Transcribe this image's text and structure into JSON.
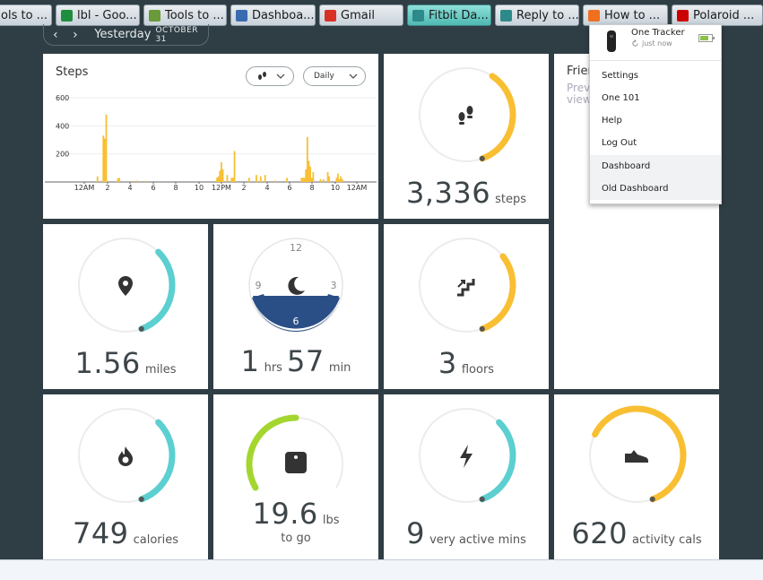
{
  "tabs": [
    {
      "label": "ols to ...",
      "icon": "tools-icon",
      "color": "#6a9a3a"
    },
    {
      "label": "lbl - Goo...",
      "icon": "sheets-icon",
      "color": "#1e8e3e"
    },
    {
      "label": "Tools to ...",
      "icon": "tools-icon",
      "color": "#6a9a3a"
    },
    {
      "label": "Dashboa...",
      "icon": "tw-icon",
      "color": "#3a6ab0"
    },
    {
      "label": "Gmail",
      "icon": "gmail-icon",
      "color": "#d93025"
    },
    {
      "label": "Fitbit Da...",
      "icon": "fitbit-icon",
      "color": "#2d8a8a"
    },
    {
      "label": "Reply to ...",
      "icon": "fitbit-icon",
      "color": "#2d8a8a"
    },
    {
      "label": "How to ...",
      "icon": "ring-icon",
      "color": "#f07020"
    },
    {
      "label": "Polaroid ...",
      "icon": "youtube-icon",
      "color": "#cc0000"
    }
  ],
  "date_nav": {
    "prev": "‹",
    "next": "›",
    "day": "Yesterday",
    "date": "OCTOBER 31"
  },
  "steps_chart": {
    "title": "Steps",
    "filter_label": "Daily",
    "chart_data": {
      "type": "bar",
      "title": "Steps",
      "ylim": [
        0,
        600
      ],
      "yticks": [
        200,
        400,
        600
      ],
      "xtick_labels": [
        "12AM",
        "2",
        "4",
        "6",
        "8",
        "10",
        "12PM",
        "2",
        "4",
        "6",
        "8",
        "10",
        "12AM"
      ],
      "values": [
        0,
        0,
        0,
        0,
        0,
        0,
        0,
        0,
        0,
        40,
        0,
        0,
        0,
        330,
        310,
        480,
        0,
        0,
        0,
        0,
        0,
        0,
        0,
        25,
        30,
        0,
        0,
        0,
        0,
        0,
        0,
        0,
        0,
        0,
        0,
        0,
        10,
        0,
        0,
        0,
        0,
        0,
        8,
        0,
        0,
        0,
        0,
        0,
        0,
        0,
        0,
        0,
        0,
        0,
        0,
        0,
        0,
        0,
        0,
        0,
        0,
        0,
        0,
        0,
        0,
        0,
        0,
        0,
        0,
        0,
        0,
        0,
        0,
        0,
        0,
        0,
        0,
        0,
        0,
        0,
        0,
        0,
        0,
        0,
        0,
        0,
        0,
        0,
        0,
        0,
        0,
        30,
        40,
        80,
        140,
        90,
        0,
        0,
        50,
        0,
        0,
        30,
        30,
        220,
        0,
        0,
        0,
        0,
        0,
        0,
        0,
        0,
        0,
        30,
        0,
        0,
        0,
        0,
        50,
        0,
        0,
        40,
        0,
        0,
        50,
        0,
        0,
        0,
        0,
        0,
        0,
        10,
        0,
        0,
        0,
        0,
        0,
        0,
        0,
        30,
        0,
        0,
        0,
        0,
        0,
        0,
        0,
        0,
        0,
        30,
        30,
        30,
        90,
        320,
        150,
        110,
        30,
        70,
        0,
        0,
        0,
        0,
        20,
        0,
        20,
        0,
        0,
        70,
        40,
        0,
        0,
        0,
        0,
        30,
        60,
        20,
        40,
        20,
        0,
        0,
        0,
        0,
        0,
        0,
        0,
        0,
        0,
        0
      ]
    }
  },
  "tiles": {
    "steps": {
      "value": "3,336",
      "unit": "steps",
      "progress": 0.35,
      "color": "#f9bf33",
      "icon": "footsteps-icon"
    },
    "distance": {
      "value": "1.56",
      "unit": "miles",
      "progress": 0.32,
      "color": "#5ccfd1",
      "icon": "location-pin-icon"
    },
    "sleep": {
      "hours": "1",
      "hours_unit": "hrs",
      "minutes": "57",
      "minutes_unit": "min",
      "clock": [
        "12",
        "3",
        "6",
        "9"
      ],
      "color": "#2a4f86",
      "icon": "moon-icon"
    },
    "floors": {
      "value": "3",
      "unit": "floors",
      "progress": 0.3,
      "color": "#f9bf33",
      "icon": "stairs-icon"
    },
    "calories": {
      "value": "749",
      "unit": "calories",
      "progress": 0.32,
      "color": "#5ccfd1",
      "icon": "flame-icon"
    },
    "weight": {
      "value": "19.6",
      "unit": "lbs",
      "sub": "to go",
      "progress": 0.2,
      "color": "#a4d62f",
      "icon": "scale-icon"
    },
    "active_mins": {
      "value": "9",
      "unit": "very active mins",
      "progress": 0.32,
      "color": "#5ccfd1",
      "icon": "lightning-icon"
    },
    "activity_cals": {
      "value": "620",
      "unit": "activity cals",
      "progress": 0.62,
      "color": "#f9bf33",
      "icon": "shoe-icon"
    }
  },
  "friends": {
    "title": "Frien",
    "preview": "Previ",
    "view": "view"
  },
  "dropdown": {
    "tracker_name": "One Tracker",
    "tracker_status": "just now",
    "items": [
      "Settings",
      "One 101",
      "Help",
      "Log Out",
      "Dashboard",
      "Old Dashboard"
    ]
  },
  "colors": {
    "background": "#2f3e45",
    "tab_active": "#4fb8b2",
    "track": "#ececec"
  }
}
